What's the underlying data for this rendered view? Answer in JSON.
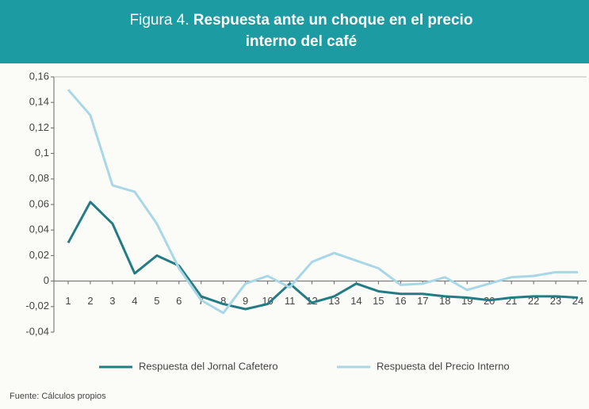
{
  "chart_data": {
    "type": "line",
    "figure_label": "Figura 4.",
    "title": "Respuesta ante un choque en el precio interno del café",
    "source": "Fuente: Cálculos propios",
    "categories": [
      "1",
      "2",
      "3",
      "4",
      "5",
      "6",
      "7",
      "8",
      "9",
      "10",
      "11",
      "12",
      "13",
      "14",
      "15",
      "16",
      "17",
      "18",
      "19",
      "20",
      "21",
      "22",
      "23",
      "24"
    ],
    "series": [
      {
        "name": "Respuesta del Jornal Cafetero",
        "color": "#237c84",
        "values": [
          0.03,
          0.062,
          0.045,
          0.006,
          0.02,
          0.012,
          -0.012,
          -0.018,
          -0.022,
          -0.018,
          -0.002,
          -0.017,
          -0.012,
          -0.002,
          -0.008,
          -0.01,
          -0.01,
          -0.012,
          -0.013,
          -0.015,
          -0.013,
          -0.012,
          -0.012,
          -0.013
        ]
      },
      {
        "name": "Respuesta del Precio Interno",
        "color": "#a9d7e6",
        "values": [
          0.15,
          0.13,
          0.075,
          0.07,
          0.045,
          0.01,
          -0.015,
          -0.025,
          -0.002,
          0.004,
          -0.005,
          0.015,
          0.022,
          0.016,
          0.01,
          -0.003,
          -0.002,
          0.003,
          -0.007,
          -0.002,
          0.003,
          0.004,
          0.007,
          0.007
        ]
      }
    ],
    "ylim": [
      -0.04,
      0.16
    ],
    "yticks": [
      {
        "value": -0.04,
        "label": "-0,04"
      },
      {
        "value": -0.02,
        "label": "-0,02"
      },
      0,
      {
        "value": 0.02,
        "label": "0,02"
      },
      {
        "value": 0.04,
        "label": "0,04"
      },
      {
        "value": 0.06,
        "label": "0,06"
      },
      {
        "value": 0.08,
        "label": "0,08"
      },
      {
        "value": 0.1,
        "label": "0,1"
      },
      {
        "value": 0.12,
        "label": "0,12"
      },
      {
        "value": 0.14,
        "label": "0,14"
      },
      {
        "value": 0.16,
        "label": "0,16"
      }
    ],
    "legend": "bottom",
    "header_color": "#1c9ba2"
  }
}
